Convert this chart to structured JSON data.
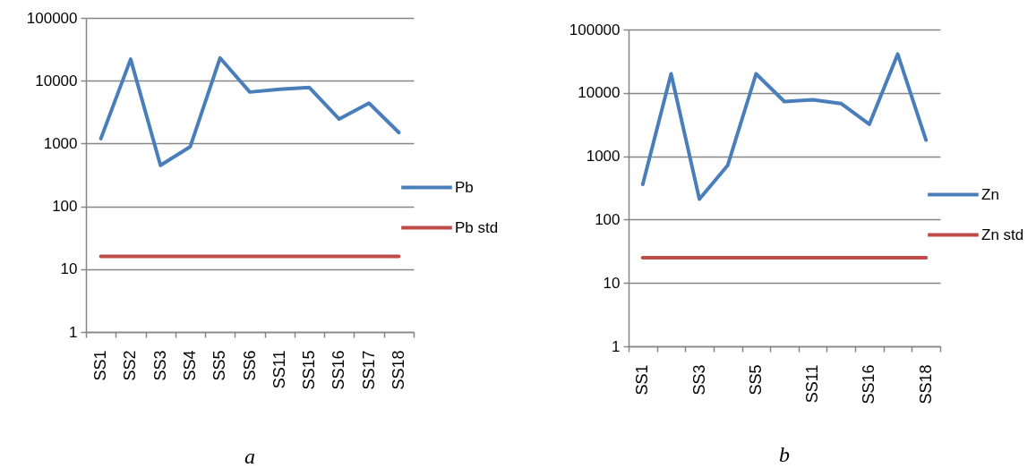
{
  "chart_data": [
    {
      "type": "line",
      "title": "a",
      "categories": [
        "SS1",
        "SS2",
        "SS3",
        "SS4",
        "SS5",
        "SS6",
        "SS11",
        "SS15",
        "SS16",
        "SS17",
        "SS18"
      ],
      "series": [
        {
          "name": "Pb",
          "color": "#4a7ebb",
          "values": [
            1200,
            22000,
            450,
            890,
            23000,
            6600,
            7300,
            7800,
            2450,
            4400,
            1500
          ]
        },
        {
          "name": "Pb std",
          "color": "#be4b48",
          "values": [
            16,
            16,
            16,
            16,
            16,
            16,
            16,
            16,
            16,
            16,
            16
          ]
        }
      ],
      "ylim": [
        1,
        100000
      ],
      "yticks": [
        1,
        10,
        100,
        1000,
        10000,
        100000
      ],
      "log": true,
      "grid": "y",
      "legend": "right"
    },
    {
      "type": "line",
      "title": "b",
      "categories": [
        "SS1",
        null,
        "SS3",
        null,
        "SS5",
        null,
        "SS11",
        null,
        "SS16",
        null,
        "SS18"
      ],
      "series": [
        {
          "name": "Zn",
          "color": "#4a7ebb",
          "values": [
            360,
            20000,
            210,
            720,
            20000,
            7300,
            7800,
            6800,
            3200,
            41000,
            1800
          ]
        },
        {
          "name": "Zn std",
          "color": "#be4b48",
          "values": [
            25,
            25,
            25,
            25,
            25,
            25,
            25,
            25,
            25,
            25,
            25
          ]
        }
      ],
      "ylim": [
        1,
        100000
      ],
      "yticks": [
        1,
        10,
        100,
        1000,
        10000,
        100000
      ],
      "log": true,
      "grid": "y",
      "legend": "right"
    }
  ]
}
